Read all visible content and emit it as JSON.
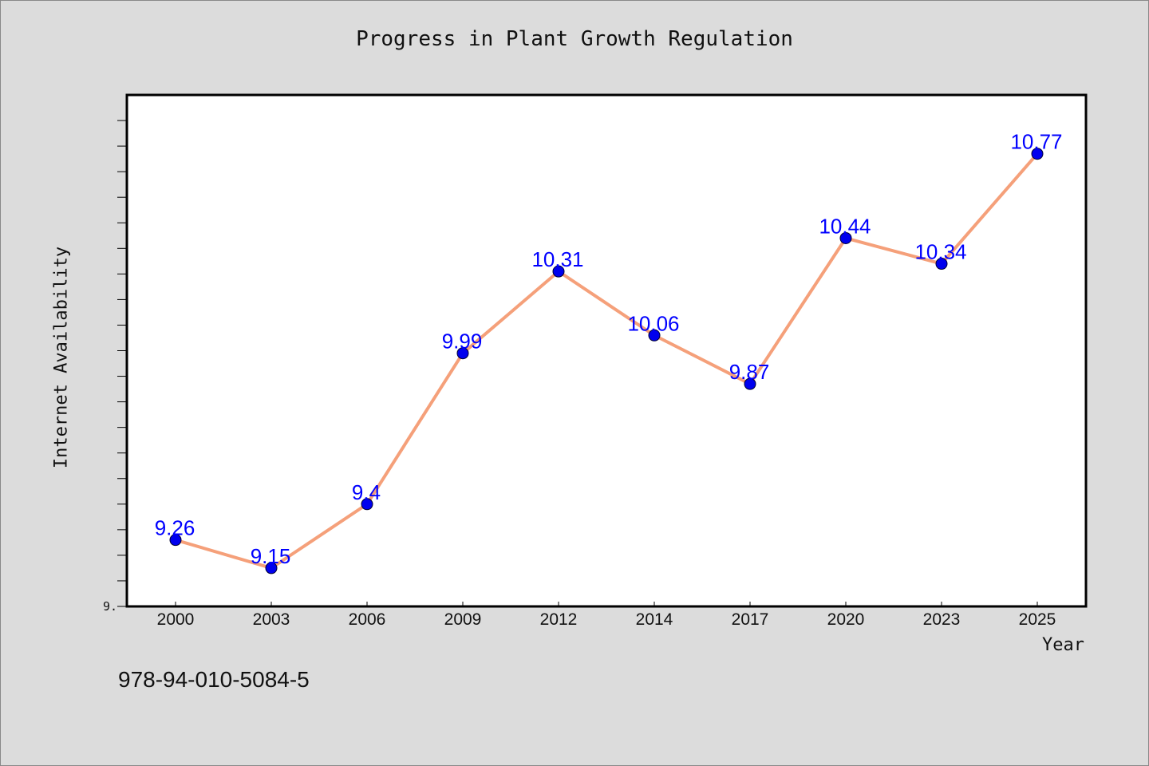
{
  "chart_data": {
    "type": "line",
    "title": "Progress in Plant Growth Regulation",
    "xlabel": "Year",
    "ylabel": "Internet Availability",
    "categories": [
      "2000",
      "2003",
      "2006",
      "2009",
      "2012",
      "2014",
      "2017",
      "2020",
      "2023",
      "2025"
    ],
    "series": [
      {
        "values": [
          9.26,
          9.15,
          9.4,
          9.99,
          10.31,
          10.06,
          9.87,
          10.44,
          10.34,
          10.77
        ],
        "data_labels": [
          "9.26",
          "9.15",
          "9.4",
          "9.99",
          "10.31",
          "10.06",
          "9.87",
          "10.44",
          "10.34",
          "10.77"
        ],
        "line_color": "#f5a07a",
        "marker_color": "#0000ee",
        "label_color": "#0000ff"
      }
    ],
    "ylim": [
      9.0,
      11.0
    ],
    "y_tick_label": "9.",
    "grid": false,
    "legend": "none"
  },
  "footnote": "978-94-010-5084-5"
}
